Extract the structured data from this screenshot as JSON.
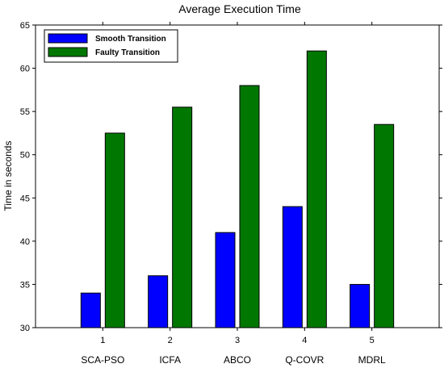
{
  "chart_data": {
    "type": "bar",
    "title": "Average Execution Time",
    "ylabel": "Time in seconds",
    "xlabel": "",
    "ylim": [
      30,
      65
    ],
    "yticks": [
      30,
      35,
      40,
      45,
      50,
      55,
      60,
      65
    ],
    "x": [
      1,
      2,
      3,
      4,
      5
    ],
    "categories": [
      "SCA-PSO",
      "ICFA",
      "ABCO",
      "Q-COVR",
      "MDRL"
    ],
    "series": [
      {
        "name": "Smooth Transition",
        "color": "#0000ff",
        "values": [
          34,
          36,
          41,
          44,
          35
        ]
      },
      {
        "name": "Faulty Transition",
        "color": "#007700",
        "values": [
          52.5,
          55.5,
          58,
          62,
          53.5
        ]
      }
    ],
    "legend": "top-left",
    "grid": false
  }
}
